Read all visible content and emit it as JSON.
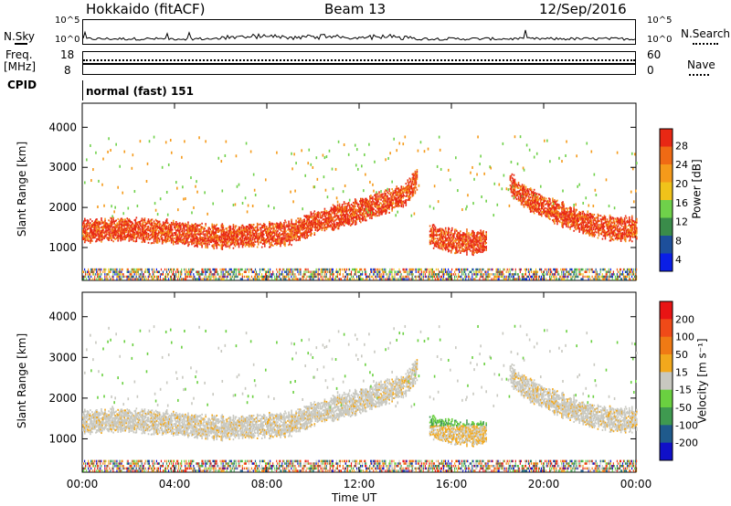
{
  "header": {
    "station": "Hokkaido (fitACF)",
    "beam": "Beam 13",
    "date": "12/Sep/2016"
  },
  "noise_panel": {
    "left_label": "N.Sky",
    "right_label": "N.Search",
    "left_ticks": [
      "10^5",
      "10^0"
    ],
    "right_ticks": [
      "10^5",
      "10^0"
    ]
  },
  "freq_panel": {
    "left_label_1": "Freq.",
    "left_label_2": "[MHz]",
    "right_label": "Nave",
    "left_ticks": [
      "18",
      "8"
    ],
    "right_ticks": [
      "60",
      "0"
    ]
  },
  "cpid_panel": {
    "label": "CPID",
    "mode": "normal (fast) 151"
  },
  "x_axis": {
    "title": "Time UT",
    "ticks": [
      "00:00",
      "04:00",
      "08:00",
      "12:00",
      "16:00",
      "20:00",
      "00:00"
    ]
  },
  "colors": {
    "power_scale": [
      "#0a1ee6",
      "#1d4f9b",
      "#3a8c4a",
      "#6fd14a",
      "#f0c31a",
      "#f59a1a",
      "#f06a14",
      "#e82814"
    ],
    "velocity_scale": [
      "#1010c8",
      "#1f5a8c",
      "#3f9a50",
      "#6ad040",
      "#c8c8c0",
      "#f2a81c",
      "#f07a14",
      "#f04a18",
      "#e81414"
    ]
  },
  "chart_data": [
    {
      "type": "heatmap",
      "title": "",
      "xlabel": "Time UT",
      "ylabel": "Slant Range [km]",
      "xlim": [
        0,
        24
      ],
      "ylim": [
        180,
        4600
      ],
      "yticks": [
        "4000",
        "3000",
        "2000",
        "1000"
      ],
      "colorbar": {
        "label": "Power [dB]",
        "ticks": [
          "28",
          "24",
          "20",
          "16",
          "12",
          "8",
          "4"
        ],
        "range": [
          0,
          30
        ]
      },
      "echo_bands": [
        {
          "x": [
            0,
            2,
            4,
            6,
            8,
            9,
            10,
            12,
            14,
            14.5
          ],
          "y": [
            1400,
            1450,
            1350,
            1250,
            1300,
            1350,
            1600,
            1900,
            2300,
            2700
          ]
        },
        {
          "x": [
            15,
            16,
            17,
            17.5
          ],
          "y": [
            1300,
            1150,
            1100,
            1150
          ]
        },
        {
          "x": [
            18.5,
            19,
            20,
            21,
            22,
            23,
            24
          ],
          "y": [
            2600,
            2300,
            2000,
            1750,
            1550,
            1450,
            1450
          ]
        }
      ]
    },
    {
      "type": "heatmap",
      "title": "",
      "xlabel": "Time UT",
      "ylabel": "Slant Range [km]",
      "xlim": [
        0,
        24
      ],
      "ylim": [
        180,
        4600
      ],
      "yticks": [
        "4000",
        "3000",
        "2000",
        "1000"
      ],
      "colorbar": {
        "label": "Velocity [m s⁻¹]",
        "ticks": [
          "200",
          "100",
          "50",
          "15",
          "-15",
          "-50",
          "-100",
          "-200"
        ],
        "range": [
          -250,
          250
        ]
      }
    }
  ]
}
